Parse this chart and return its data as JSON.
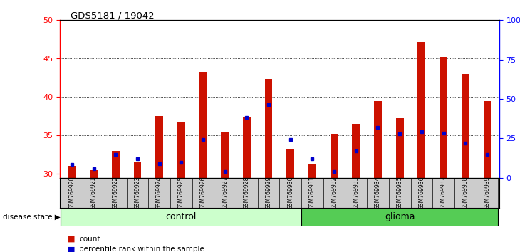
{
  "title": "GDS5181 / 19042",
  "samples": [
    "GSM769920",
    "GSM769921",
    "GSM769922",
    "GSM769923",
    "GSM769924",
    "GSM769925",
    "GSM769926",
    "GSM769927",
    "GSM769928",
    "GSM769929",
    "GSM769930",
    "GSM769931",
    "GSM769932",
    "GSM769933",
    "GSM769934",
    "GSM769935",
    "GSM769936",
    "GSM769937",
    "GSM769938",
    "GSM769939"
  ],
  "count_values": [
    31.0,
    30.5,
    33.0,
    31.5,
    37.5,
    36.7,
    43.3,
    35.5,
    37.3,
    42.3,
    33.2,
    31.2,
    35.2,
    36.5,
    39.5,
    37.2,
    47.2,
    45.2,
    43.0,
    39.5
  ],
  "percentile_values": [
    31.2,
    30.7,
    32.5,
    32.0,
    31.3,
    31.5,
    34.5,
    30.3,
    37.3,
    39.0,
    34.5,
    32.0,
    30.3,
    33.0,
    36.0,
    35.2,
    35.5,
    35.3,
    34.0,
    32.5
  ],
  "groups": [
    {
      "label": "control",
      "start": 0,
      "end": 11,
      "color": "#ccffcc"
    },
    {
      "label": "glioma",
      "start": 11,
      "end": 20,
      "color": "#55cc55"
    }
  ],
  "ylim_left": [
    29.5,
    50
  ],
  "yticks_left": [
    30,
    35,
    40,
    45,
    50
  ],
  "ylim_right": [
    0,
    100
  ],
  "yticks_right": [
    0,
    25,
    50,
    75,
    100
  ],
  "bar_color": "#cc1100",
  "dot_color": "#0000cc",
  "bar_width": 0.35,
  "plot_bg_color": "#ffffff",
  "label_bg_color": "#cccccc",
  "legend_count_label": "count",
  "legend_pct_label": "percentile rank within the sample",
  "disease_state_label": "disease state"
}
